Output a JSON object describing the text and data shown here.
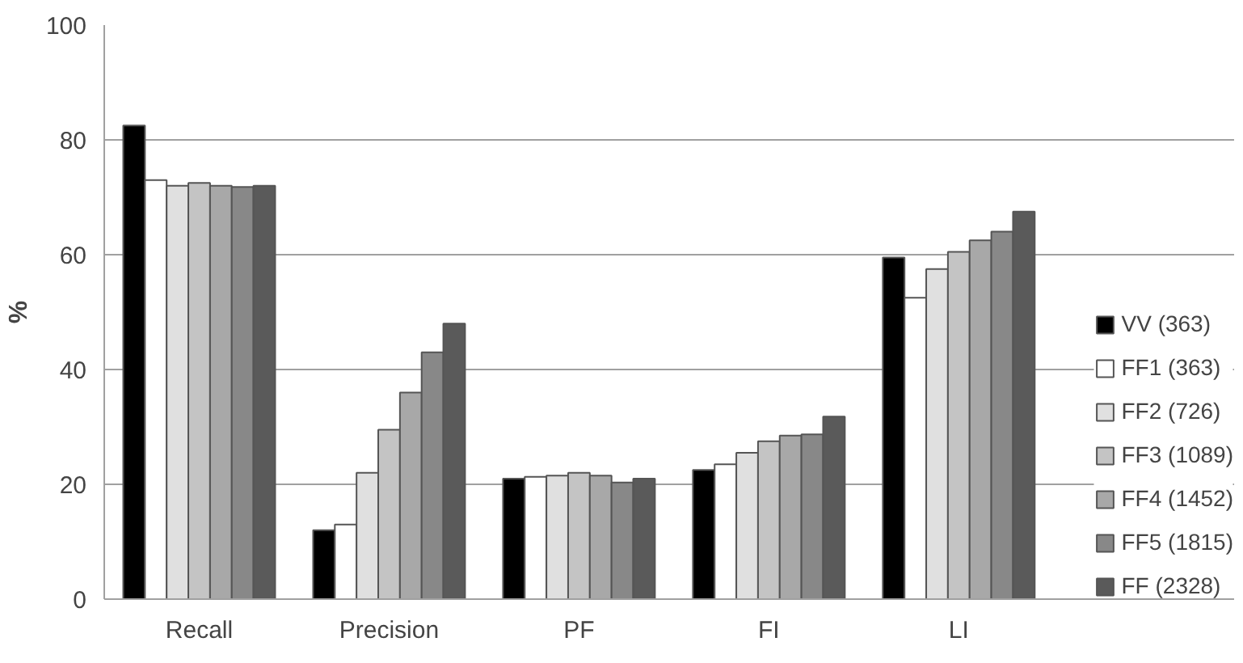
{
  "chart_data": {
    "type": "bar",
    "ylabel": "%",
    "categories": [
      "Recall",
      "Precision",
      "PF",
      "FI",
      "LI"
    ],
    "ylim": [
      0,
      100
    ],
    "yticks": [
      0,
      20,
      40,
      60,
      80,
      100
    ],
    "grid": "y",
    "legend": "right",
    "series": [
      {
        "name": "VV (363)",
        "color": "#000000",
        "values": [
          82.5,
          12,
          21,
          22.5,
          59.5
        ]
      },
      {
        "name": "FF1 (363)",
        "color": "#ffffff",
        "values": [
          73,
          13,
          21.3,
          23.5,
          52.5
        ]
      },
      {
        "name": "FF2 (726)",
        "color": "#e0e0e0",
        "values": [
          72,
          22,
          21.5,
          25.5,
          57.5
        ]
      },
      {
        "name": "FF3 (1089)",
        "color": "#c4c4c4",
        "values": [
          72.5,
          29.5,
          22,
          27.5,
          60.5
        ]
      },
      {
        "name": "FF4 (1452)",
        "color": "#a8a8a8",
        "values": [
          72,
          36,
          21.5,
          28.5,
          62.5
        ]
      },
      {
        "name": "FF5 (1815)",
        "color": "#888888",
        "values": [
          71.8,
          43,
          20.3,
          28.7,
          64
        ]
      },
      {
        "name": "FF (2328)",
        "color": "#5a5a5a",
        "values": [
          72,
          48,
          21,
          31.8,
          67.5
        ]
      }
    ]
  }
}
